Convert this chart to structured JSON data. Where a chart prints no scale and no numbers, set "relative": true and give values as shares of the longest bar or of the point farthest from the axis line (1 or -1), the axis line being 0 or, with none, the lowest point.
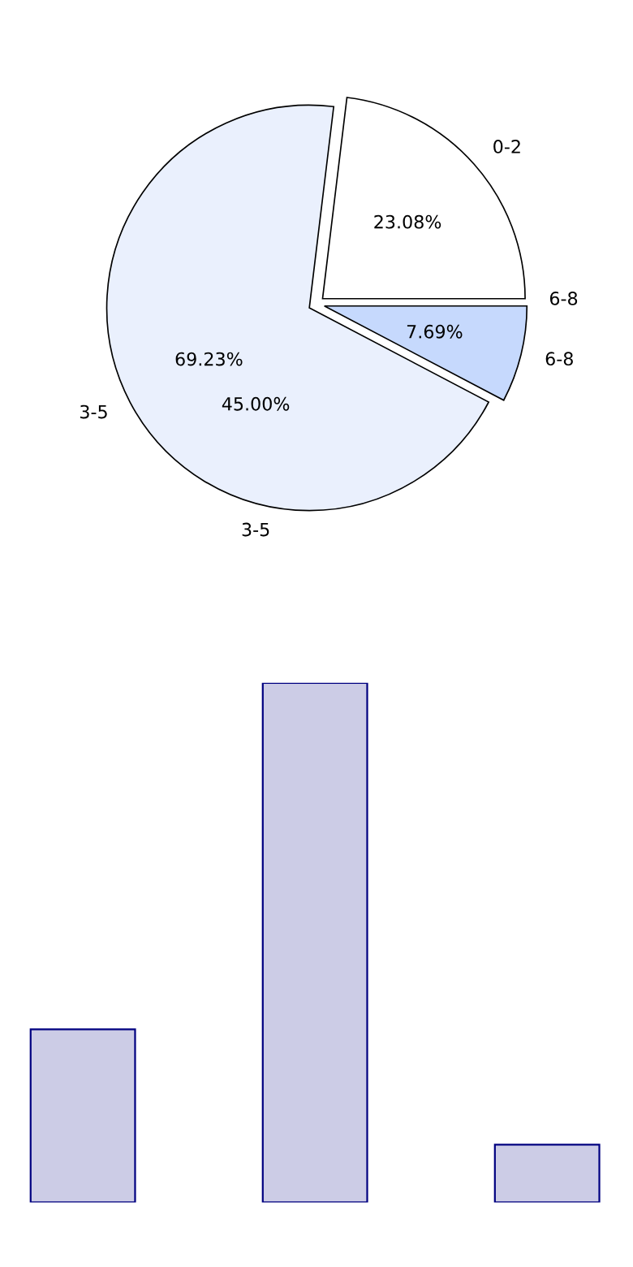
{
  "chart_data": [
    {
      "type": "pie",
      "categories": [
        "0-2",
        "3-5",
        "6-8"
      ],
      "values": [
        23.08,
        69.23,
        7.69
      ],
      "colors": [
        "#ffffff",
        "#eaf0fd",
        "#c6d9fd"
      ],
      "value_labels": [
        "23.08%",
        "69.23%",
        "7.69%"
      ],
      "annotations": [
        "6-8",
        "3-5",
        "45.00%"
      ]
    },
    {
      "type": "bar",
      "categories": [
        null,
        null,
        null
      ],
      "values": [
        0.333,
        1,
        0.111
      ],
      "color": "#ccccE6",
      "relative": true
    }
  ]
}
